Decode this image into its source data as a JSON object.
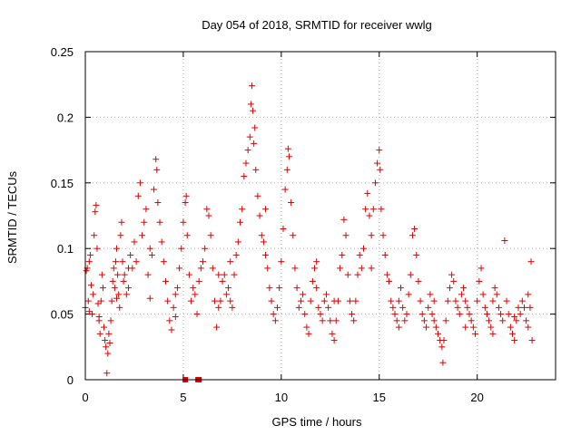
{
  "chart_data": {
    "type": "scatter",
    "title": "Day 054 of 2018, SRMTID for receiver wwlg",
    "xlabel": "GPS time / hours",
    "ylabel": "SRMTID / TECUs",
    "xlim": [
      0,
      24
    ],
    "ylim": [
      0,
      0.25
    ],
    "xticks": [
      0,
      5,
      10,
      15,
      20
    ],
    "xtick_labels": [
      "0",
      "5",
      "10",
      "15",
      "20"
    ],
    "yticks": [
      0,
      0.05,
      0.1,
      0.15,
      0.2,
      0.25
    ],
    "ytick_labels": [
      "0",
      "0.05",
      "0.1",
      "0.15",
      "0.2",
      "0.25"
    ],
    "grid": true,
    "marker": "plus",
    "color": "#e00000",
    "series": [
      {
        "name": "SRMTID",
        "points": [
          [
            0.0,
            0.055
          ],
          [
            0.05,
            0.083
          ],
          [
            0.1,
            0.085
          ],
          [
            0.15,
            0.06
          ],
          [
            0.2,
            0.09
          ],
          [
            0.25,
            0.095
          ],
          [
            0.3,
            0.072
          ],
          [
            0.35,
            0.05
          ],
          [
            0.4,
            0.065
          ],
          [
            0.45,
            0.11
          ],
          [
            0.5,
            0.128
          ],
          [
            0.55,
            0.133
          ],
          [
            0.6,
            0.1
          ],
          [
            0.65,
            0.058
          ],
          [
            0.7,
            0.045
          ],
          [
            0.75,
            0.035
          ],
          [
            0.8,
            0.06
          ],
          [
            0.85,
            0.08
          ],
          [
            0.9,
            0.07
          ],
          [
            0.95,
            0.04
          ],
          [
            1.0,
            0.03
          ],
          [
            1.05,
            0.025
          ],
          [
            1.1,
            0.005
          ],
          [
            1.15,
            0.02
          ],
          [
            1.2,
            0.035
          ],
          [
            1.25,
            0.028
          ],
          [
            1.3,
            0.045
          ],
          [
            1.35,
            0.06
          ],
          [
            1.4,
            0.075
          ],
          [
            1.45,
            0.085
          ],
          [
            1.5,
            0.07
          ],
          [
            1.55,
            0.09
          ],
          [
            1.6,
            0.1
          ],
          [
            1.65,
            0.08
          ],
          [
            1.7,
            0.065
          ],
          [
            1.75,
            0.055
          ],
          [
            1.8,
            0.11
          ],
          [
            1.85,
            0.12
          ],
          [
            1.9,
            0.09
          ],
          [
            1.95,
            0.075
          ],
          [
            2.0,
            0.08
          ],
          [
            2.1,
            0.065
          ],
          [
            2.2,
            0.07
          ],
          [
            2.3,
            0.095
          ],
          [
            2.4,
            0.085
          ],
          [
            2.5,
            0.105
          ],
          [
            2.6,
            0.09
          ],
          [
            2.7,
            0.14
          ],
          [
            2.8,
            0.15
          ],
          [
            2.9,
            0.11
          ],
          [
            3.0,
            0.12
          ],
          [
            3.1,
            0.13
          ],
          [
            3.2,
            0.08
          ],
          [
            3.3,
            0.1
          ],
          [
            3.4,
            0.095
          ],
          [
            3.5,
            0.145
          ],
          [
            3.6,
            0.168
          ],
          [
            3.65,
            0.16
          ],
          [
            3.7,
            0.135
          ],
          [
            3.8,
            0.12
          ],
          [
            3.9,
            0.105
          ],
          [
            4.0,
            0.09
          ],
          [
            4.1,
            0.075
          ],
          [
            4.2,
            0.06
          ],
          [
            4.3,
            0.045
          ],
          [
            4.4,
            0.038
          ],
          [
            4.5,
            0.055
          ],
          [
            4.6,
            0.065
          ],
          [
            4.7,
            0.07
          ],
          [
            4.8,
            0.085
          ],
          [
            4.9,
            0.1
          ],
          [
            5.0,
            0.12
          ],
          [
            5.1,
            0.135
          ],
          [
            5.15,
            0.14
          ],
          [
            5.2,
            0.11
          ],
          [
            5.3,
            0.08
          ],
          [
            5.4,
            0.06
          ],
          [
            5.5,
            0.07
          ],
          [
            5.6,
            0.065
          ],
          [
            5.7,
            0.05
          ],
          [
            5.8,
            0.075
          ],
          [
            5.9,
            0.085
          ],
          [
            6.0,
            0.09
          ],
          [
            6.1,
            0.1
          ],
          [
            6.2,
            0.13
          ],
          [
            6.3,
            0.125
          ],
          [
            6.4,
            0.11
          ],
          [
            6.5,
            0.085
          ],
          [
            6.6,
            0.06
          ],
          [
            6.7,
            0.04
          ],
          [
            6.8,
            0.055
          ],
          [
            6.9,
            0.06
          ],
          [
            7.0,
            0.075
          ],
          [
            7.1,
            0.08
          ],
          [
            7.2,
            0.065
          ],
          [
            7.3,
            0.07
          ],
          [
            7.4,
            0.06
          ],
          [
            7.5,
            0.055
          ],
          [
            7.6,
            0.08
          ],
          [
            7.7,
            0.095
          ],
          [
            7.8,
            0.105
          ],
          [
            7.9,
            0.12
          ],
          [
            8.0,
            0.13
          ],
          [
            8.1,
            0.155
          ],
          [
            8.2,
            0.165
          ],
          [
            8.3,
            0.175
          ],
          [
            8.4,
            0.185
          ],
          [
            8.45,
            0.21
          ],
          [
            8.5,
            0.224
          ],
          [
            8.55,
            0.205
          ],
          [
            8.6,
            0.18
          ],
          [
            8.65,
            0.192
          ],
          [
            8.7,
            0.16
          ],
          [
            8.8,
            0.14
          ],
          [
            8.9,
            0.125
          ],
          [
            9.0,
            0.11
          ],
          [
            9.1,
            0.105
          ],
          [
            9.2,
            0.095
          ],
          [
            9.3,
            0.085
          ],
          [
            9.4,
            0.07
          ],
          [
            9.5,
            0.06
          ],
          [
            9.6,
            0.05
          ],
          [
            9.7,
            0.045
          ],
          [
            9.8,
            0.055
          ],
          [
            9.9,
            0.07
          ],
          [
            10.0,
            0.09
          ],
          [
            10.1,
            0.115
          ],
          [
            10.2,
            0.145
          ],
          [
            10.3,
            0.16
          ],
          [
            10.35,
            0.176
          ],
          [
            10.4,
            0.17
          ],
          [
            10.5,
            0.135
          ],
          [
            10.6,
            0.11
          ],
          [
            10.7,
            0.085
          ],
          [
            10.8,
            0.07
          ],
          [
            10.9,
            0.055
          ],
          [
            11.0,
            0.06
          ],
          [
            11.1,
            0.065
          ],
          [
            11.2,
            0.05
          ],
          [
            11.3,
            0.04
          ],
          [
            11.4,
            0.035
          ],
          [
            11.5,
            0.06
          ],
          [
            11.6,
            0.075
          ],
          [
            11.7,
            0.085
          ],
          [
            11.8,
            0.07
          ],
          [
            11.9,
            0.055
          ],
          [
            12.0,
            0.05
          ],
          [
            12.1,
            0.045
          ],
          [
            12.2,
            0.06
          ],
          [
            12.3,
            0.065
          ],
          [
            12.4,
            0.055
          ],
          [
            12.5,
            0.045
          ],
          [
            12.6,
            0.035
          ],
          [
            12.7,
            0.03
          ],
          [
            12.8,
            0.045
          ],
          [
            12.9,
            0.06
          ],
          [
            13.0,
            0.085
          ],
          [
            13.1,
            0.095
          ],
          [
            13.2,
            0.122
          ],
          [
            13.3,
            0.11
          ],
          [
            13.4,
            0.08
          ],
          [
            13.5,
            0.06
          ],
          [
            13.6,
            0.05
          ],
          [
            13.7,
            0.045
          ],
          [
            13.8,
            0.06
          ],
          [
            13.9,
            0.08
          ],
          [
            14.0,
            0.095
          ],
          [
            14.1,
            0.085
          ],
          [
            14.2,
            0.1
          ],
          [
            14.3,
            0.13
          ],
          [
            14.4,
            0.142
          ],
          [
            14.5,
            0.125
          ],
          [
            14.6,
            0.11
          ],
          [
            14.7,
            0.13
          ],
          [
            14.8,
            0.15
          ],
          [
            14.9,
            0.165
          ],
          [
            15.0,
            0.175
          ],
          [
            15.05,
            0.16
          ],
          [
            15.1,
            0.13
          ],
          [
            15.2,
            0.11
          ],
          [
            15.3,
            0.095
          ],
          [
            15.4,
            0.08
          ],
          [
            15.5,
            0.075
          ],
          [
            15.6,
            0.06
          ],
          [
            15.7,
            0.055
          ],
          [
            15.8,
            0.05
          ],
          [
            15.9,
            0.045
          ],
          [
            16.0,
            0.06
          ],
          [
            16.1,
            0.07
          ],
          [
            16.2,
            0.055
          ],
          [
            16.3,
            0.045
          ],
          [
            16.4,
            0.05
          ],
          [
            16.5,
            0.065
          ],
          [
            16.6,
            0.08
          ],
          [
            16.7,
            0.11
          ],
          [
            16.8,
            0.115
          ],
          [
            16.9,
            0.095
          ],
          [
            17.0,
            0.075
          ],
          [
            17.1,
            0.06
          ],
          [
            17.2,
            0.05
          ],
          [
            17.3,
            0.045
          ],
          [
            17.4,
            0.04
          ],
          [
            17.5,
            0.055
          ],
          [
            17.6,
            0.065
          ],
          [
            17.7,
            0.05
          ],
          [
            17.8,
            0.045
          ],
          [
            17.9,
            0.04
          ],
          [
            18.0,
            0.035
          ],
          [
            18.1,
            0.03
          ],
          [
            18.2,
            0.025
          ],
          [
            18.25,
            0.013
          ],
          [
            18.3,
            0.03
          ],
          [
            18.4,
            0.045
          ],
          [
            18.5,
            0.06
          ],
          [
            18.6,
            0.07
          ],
          [
            18.7,
            0.08
          ],
          [
            18.8,
            0.075
          ],
          [
            18.9,
            0.06
          ],
          [
            19.0,
            0.055
          ],
          [
            19.1,
            0.05
          ],
          [
            19.2,
            0.065
          ],
          [
            19.3,
            0.07
          ],
          [
            19.4,
            0.06
          ],
          [
            19.5,
            0.055
          ],
          [
            19.6,
            0.05
          ],
          [
            19.7,
            0.045
          ],
          [
            19.8,
            0.04
          ],
          [
            19.9,
            0.035
          ],
          [
            20.0,
            0.06
          ],
          [
            20.1,
            0.075
          ],
          [
            20.2,
            0.085
          ],
          [
            20.3,
            0.065
          ],
          [
            20.4,
            0.055
          ],
          [
            20.5,
            0.05
          ],
          [
            20.6,
            0.045
          ],
          [
            20.7,
            0.04
          ],
          [
            20.8,
            0.06
          ],
          [
            20.9,
            0.07
          ],
          [
            21.0,
            0.065
          ],
          [
            21.1,
            0.055
          ],
          [
            21.2,
            0.05
          ],
          [
            21.3,
            0.045
          ],
          [
            21.4,
            0.106
          ],
          [
            21.5,
            0.06
          ],
          [
            21.6,
            0.05
          ],
          [
            21.7,
            0.04
          ],
          [
            21.8,
            0.035
          ],
          [
            21.9,
            0.03
          ],
          [
            22.0,
            0.045
          ],
          [
            22.1,
            0.055
          ],
          [
            22.2,
            0.05
          ],
          [
            22.3,
            0.06
          ],
          [
            22.4,
            0.055
          ],
          [
            22.5,
            0.045
          ],
          [
            22.6,
            0.04
          ],
          [
            22.7,
            0.055
          ],
          [
            22.75,
            0.09
          ],
          [
            22.8,
            0.03
          ],
          [
            0.2,
            0.052
          ],
          [
            0.7,
            0.048
          ],
          [
            1.6,
            0.062
          ],
          [
            2.2,
            0.085
          ],
          [
            3.3,
            0.062
          ],
          [
            4.6,
            0.048
          ],
          [
            6.8,
            0.08
          ],
          [
            7.4,
            0.09
          ],
          [
            9.2,
            0.13
          ],
          [
            11.8,
            0.09
          ],
          [
            12.7,
            0.06
          ],
          [
            14.6,
            0.085
          ],
          [
            16.0,
            0.04
          ],
          [
            17.8,
            0.06
          ],
          [
            19.4,
            0.04
          ],
          [
            20.8,
            0.035
          ],
          [
            21.9,
            0.048
          ],
          [
            22.6,
            0.065
          ]
        ]
      },
      {
        "name": "zero-gap markers",
        "marker": "square",
        "points": [
          [
            5.1,
            0.0
          ],
          [
            5.75,
            0.0
          ],
          [
            5.8,
            0.0
          ]
        ]
      }
    ]
  }
}
